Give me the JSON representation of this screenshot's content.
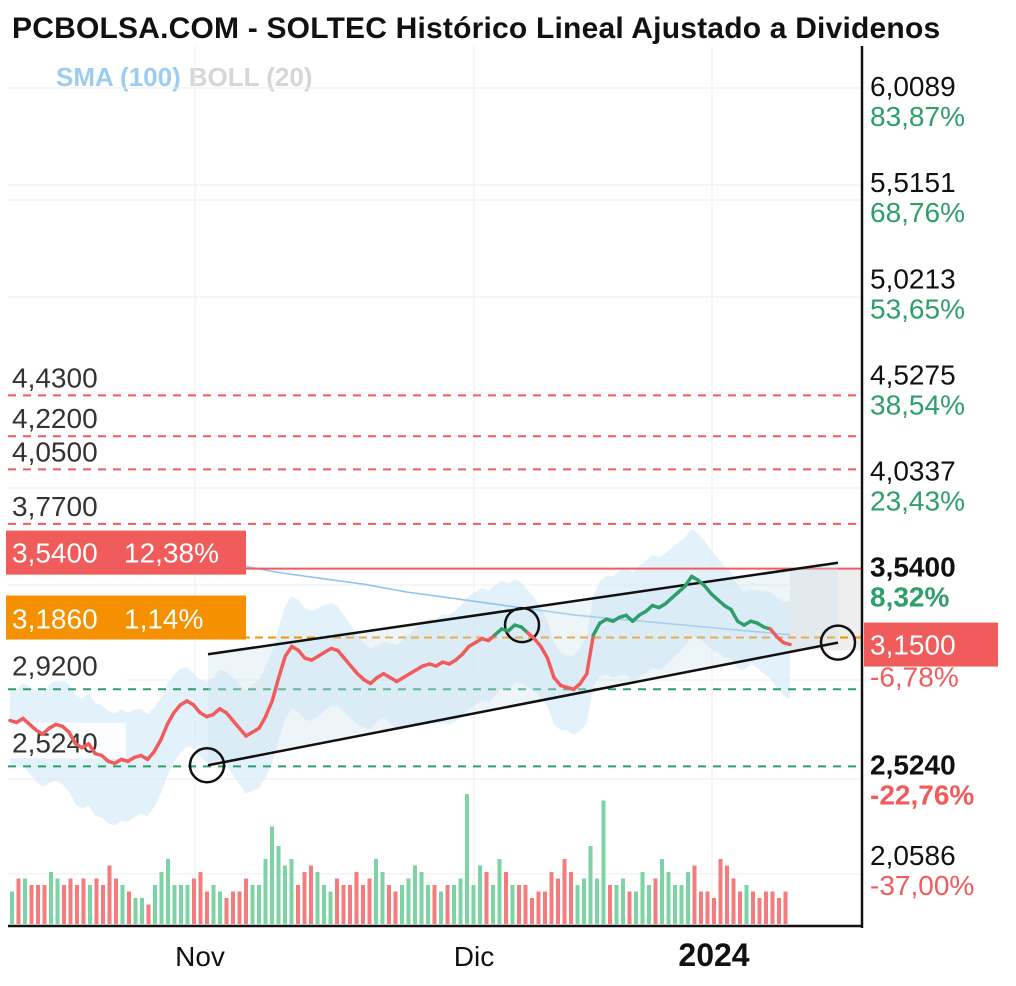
{
  "title": "PCBOLSA.COM - SOLTEC Histórico Lineal Ajustado a Dividenos",
  "legend": {
    "sma": "SMA (100)",
    "boll": "BOLL (20)"
  },
  "colors": {
    "up": "#2e9e6a",
    "down": "#f05b5b",
    "resistance": "#f05b5b",
    "support": "#2e9e6a",
    "orange": "#f59000",
    "sma": "#8fc5ef",
    "boll_band": "#d9ecfa",
    "channel_fill": "#cfe2ef"
  },
  "chart_data": {
    "type": "line",
    "ylim": [
      1.92,
      6.1
    ],
    "x_axis_labels": [
      {
        "label": "Nov",
        "bold": false
      },
      {
        "label": "Dic",
        "bold": false
      },
      {
        "label": "2024",
        "bold": true
      }
    ],
    "right_axis": [
      {
        "price": "6,0089",
        "pct": "83,87%",
        "value": 6.0089,
        "color": "up"
      },
      {
        "price": "5,5151",
        "pct": "68,76%",
        "value": 5.5151,
        "color": "up"
      },
      {
        "price": "5,0213",
        "pct": "53,65%",
        "value": 5.0213,
        "color": "up"
      },
      {
        "price": "4,5275",
        "pct": "38,54%",
        "value": 4.5275,
        "color": "up"
      },
      {
        "price": "4,0337",
        "pct": "23,43%",
        "value": 4.0337,
        "color": "up"
      },
      {
        "price": "3,5400",
        "pct": "8,32%",
        "value": 3.54,
        "color": "up",
        "bold": true
      },
      {
        "price": "2,5240",
        "pct": "-22,76%",
        "value": 2.524,
        "color": "down",
        "bold": true
      },
      {
        "price": "2,0586",
        "pct": "-37,00%",
        "value": 2.0586,
        "color": "down"
      }
    ],
    "current": {
      "label": "3,1500",
      "value": 3.15,
      "pct": "-6,78%"
    },
    "resistance_lines": [
      {
        "label": "4,4300",
        "value": 4.43
      },
      {
        "label": "4,2200",
        "value": 4.22
      },
      {
        "label": "4,0500",
        "value": 4.05
      },
      {
        "label": "3,7700",
        "value": 3.77
      }
    ],
    "highlight_resistance": {
      "price": "3,5400",
      "pct": "12,38%",
      "value": 3.54
    },
    "highlight_orange": {
      "price": "3,1860",
      "pct": "1,14%",
      "value": 3.186
    },
    "support_lines": [
      {
        "label": "2,9200",
        "value": 2.92
      },
      {
        "label": "2,5240",
        "value": 2.524
      }
    ],
    "series": [
      {
        "name": "SOLTEC",
        "values": [
          2.76,
          2.75,
          2.77,
          2.74,
          2.71,
          2.69,
          2.72,
          2.74,
          2.73,
          2.7,
          2.64,
          2.62,
          2.64,
          2.59,
          2.58,
          2.55,
          2.54,
          2.56,
          2.55,
          2.57,
          2.58,
          2.56,
          2.6,
          2.66,
          2.74,
          2.8,
          2.84,
          2.86,
          2.84,
          2.8,
          2.78,
          2.79,
          2.82,
          2.8,
          2.76,
          2.72,
          2.68,
          2.7,
          2.72,
          2.78,
          2.86,
          2.98,
          3.09,
          3.14,
          3.12,
          3.08,
          3.07,
          3.09,
          3.11,
          3.13,
          3.12,
          3.08,
          3.04,
          3.0,
          2.97,
          2.95,
          2.98,
          3.0,
          2.98,
          2.96,
          2.98,
          3.0,
          3.02,
          3.04,
          3.05,
          3.04,
          3.06,
          3.05,
          3.07,
          3.1,
          3.14,
          3.16,
          3.18,
          3.17,
          3.2,
          3.23,
          3.22,
          3.25,
          3.24,
          3.21,
          3.18,
          3.14,
          3.08,
          2.98,
          2.94,
          2.93,
          2.92,
          2.95,
          3.0,
          3.2,
          3.26,
          3.28,
          3.27,
          3.29,
          3.3,
          3.27,
          3.3,
          3.32,
          3.35,
          3.34,
          3.36,
          3.39,
          3.42,
          3.45,
          3.5,
          3.48,
          3.45,
          3.41,
          3.38,
          3.35,
          3.33,
          3.27,
          3.25,
          3.27,
          3.26,
          3.24,
          3.23,
          3.19,
          3.16,
          3.15
        ]
      },
      {
        "name": "SMA (100)",
        "values": [
          3.56,
          3.52,
          3.49,
          3.46,
          3.42,
          3.39,
          3.36,
          3.33,
          3.3,
          3.28,
          3.26,
          3.24,
          3.22,
          3.2
        ]
      }
    ],
    "volume": [
      0.25,
      0.35,
      0.35,
      0.3,
      0.3,
      0.3,
      0.4,
      0.35,
      0.3,
      0.35,
      0.3,
      0.35,
      0.3,
      0.35,
      0.3,
      0.45,
      0.35,
      0.3,
      0.25,
      0.2,
      0.2,
      0.15,
      0.3,
      0.4,
      0.5,
      0.3,
      0.3,
      0.3,
      0.35,
      0.4,
      0.25,
      0.3,
      0.25,
      0.2,
      0.25,
      0.25,
      0.35,
      0.3,
      0.3,
      0.5,
      0.75,
      0.6,
      0.45,
      0.5,
      0.3,
      0.4,
      0.45,
      0.4,
      0.3,
      0.25,
      0.35,
      0.3,
      0.3,
      0.4,
      0.3,
      0.35,
      0.5,
      0.4,
      0.3,
      0.25,
      0.3,
      0.35,
      0.45,
      0.4,
      0.3,
      0.3,
      0.25,
      0.3,
      0.3,
      0.35,
      1.0,
      0.3,
      0.45,
      0.4,
      0.3,
      0.5,
      0.4,
      0.3,
      0.3,
      0.3,
      0.2,
      0.25,
      0.25,
      0.4,
      0.35,
      0.5,
      0.4,
      0.3,
      0.35,
      0.6,
      0.35,
      0.95,
      0.3,
      0.3,
      0.35,
      0.25,
      0.25,
      0.4,
      0.3,
      0.35,
      0.5,
      0.4,
      0.3,
      0.3,
      0.4,
      0.45,
      0.25,
      0.25,
      0.2,
      0.5,
      0.45,
      0.35,
      0.25,
      0.3,
      0.25,
      0.2,
      0.25,
      0.25,
      0.2,
      0.25
    ]
  }
}
